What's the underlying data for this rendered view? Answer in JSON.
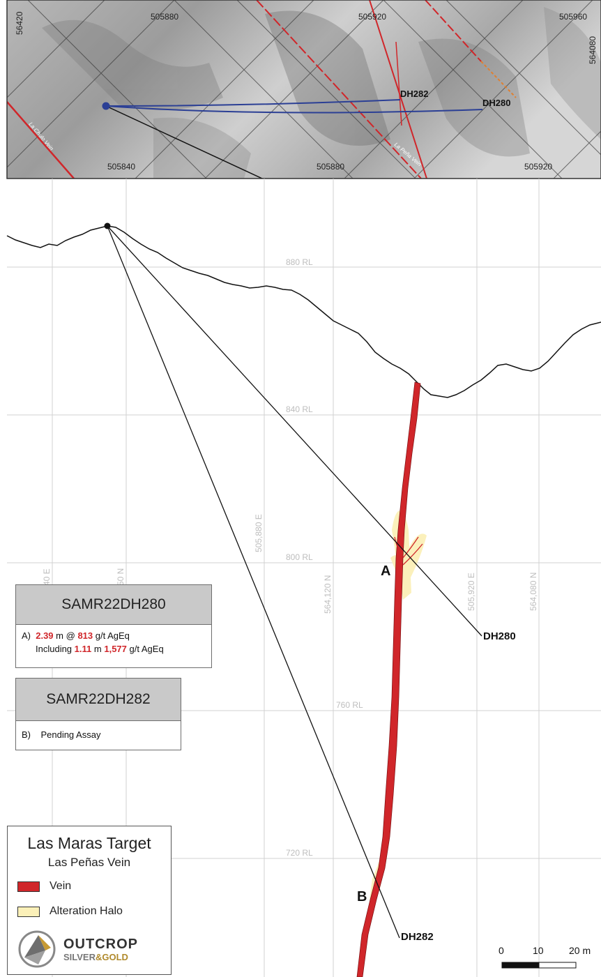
{
  "plan_map": {
    "grid_labels_top": [
      "505880",
      "505920",
      "505960"
    ],
    "grid_labels_bottom": [
      "505840",
      "505880",
      "505920"
    ],
    "grid_label_left": "56420",
    "grid_label_right": "564080",
    "drillholes": [
      "DH282",
      "DH280"
    ],
    "veins": [
      "La Chulo Vein",
      "La Peña Vein"
    ]
  },
  "section": {
    "rl_labels": [
      "880 RL",
      "840 RL",
      "800 RL",
      "760 RL",
      "720 RL"
    ],
    "grid_vertical_labels": [
      "40 E",
      "50 N",
      "505,880 E",
      "564,120 N",
      "505,920 E",
      "564,080 N"
    ],
    "drillholes": [
      "DH280",
      "DH282"
    ],
    "intercept_labels": [
      "A",
      "B"
    ]
  },
  "results": [
    {
      "title": "SAMR22DH280",
      "line1": {
        "prefix": "A)",
        "width": "2.39",
        "unit": "m @",
        "grade": "813",
        "grade_unit": "g/t AgEq"
      },
      "line2": {
        "prefix": "Including",
        "width": "1.11",
        "unit": "m",
        "grade": "1,577",
        "grade_unit": "g/t AgEq"
      }
    },
    {
      "title": "SAMR22DH282",
      "line1": {
        "prefix": "B)",
        "text": "Pending Assay"
      }
    }
  ],
  "legend": {
    "title": "Las Maras Target",
    "subtitle": "Las Peñas Vein",
    "items": [
      {
        "label": "Vein",
        "color": "#d0262a"
      },
      {
        "label": "Alteration Halo",
        "color": "#fbf0b8"
      }
    ]
  },
  "logo": {
    "name": "OUTCROP",
    "sub1": "SILVER",
    "amp": "&",
    "sub2": "GOLD"
  },
  "scale_bar": {
    "ticks": [
      "0",
      "10",
      "20 m"
    ]
  },
  "colors": {
    "vein": "#d0262a",
    "halo": "#fbf0b8",
    "trace_plan": "#2b3f95",
    "grid": "#cfcfcf"
  }
}
